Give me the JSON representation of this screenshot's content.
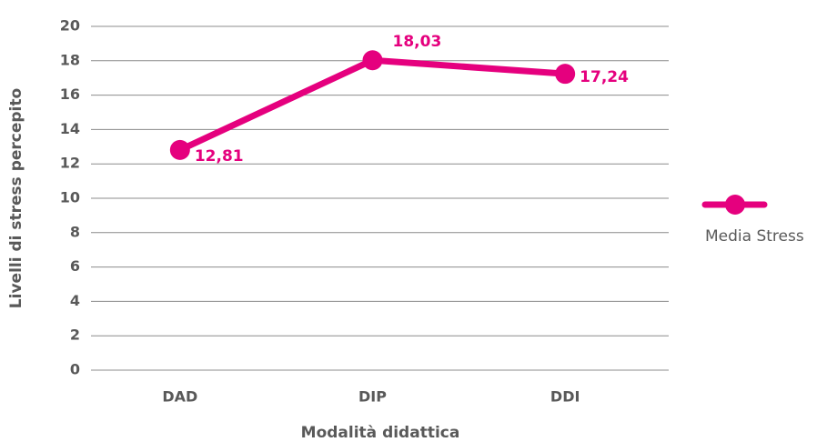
{
  "chart_data": {
    "type": "line",
    "categories": [
      "DAD",
      "DIP",
      "DDI"
    ],
    "series": [
      {
        "name": "Media Stress",
        "color": "#e5007e",
        "values": [
          12.81,
          18.03,
          17.24
        ],
        "value_labels": [
          "12,81",
          "18,03",
          "17,24"
        ]
      }
    ],
    "xlabel": "Modalità didattica",
    "ylabel": "Livelli di stress percepito",
    "ylim": [
      0,
      20
    ],
    "yticks": [
      0,
      2,
      4,
      6,
      8,
      10,
      12,
      14,
      16,
      18,
      20
    ],
    "grid": true,
    "legend": "right"
  }
}
